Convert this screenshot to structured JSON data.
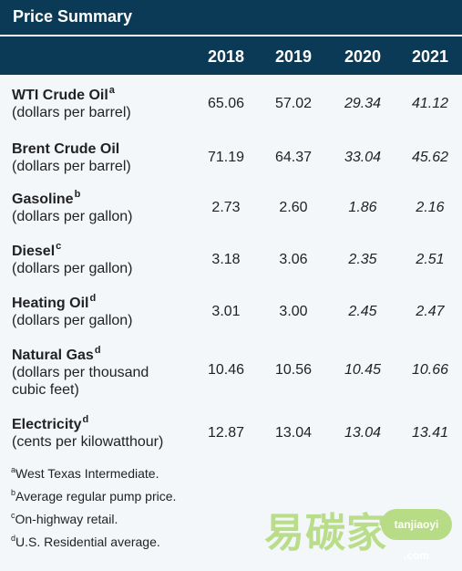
{
  "title": "Price Summary",
  "years": [
    "2018",
    "2019",
    "2020",
    "2021"
  ],
  "rows": [
    {
      "name": "WTI Crude Oil",
      "sup": "a",
      "unit_lines": [
        "(dollars per barrel)"
      ],
      "values": [
        "65.06",
        "57.02",
        "29.34",
        "41.12"
      ]
    },
    {
      "name": "Brent Crude Oil",
      "sup": "",
      "unit_lines": [
        "(dollars per barrel)"
      ],
      "values": [
        "71.19",
        "64.37",
        "33.04",
        "45.62"
      ]
    },
    {
      "name": "Gasoline",
      "sup": "b",
      "unit_lines": [
        "(dollars per gallon)"
      ],
      "values": [
        "2.73",
        "2.60",
        "1.86",
        "2.16"
      ]
    },
    {
      "name": "Diesel",
      "sup": "c",
      "unit_lines": [
        "(dollars per gallon)"
      ],
      "values": [
        "3.18",
        "3.06",
        "2.35",
        "2.51"
      ]
    },
    {
      "name": "Heating Oil",
      "sup": "d",
      "unit_lines": [
        "(dollars per gallon)"
      ],
      "values": [
        "3.01",
        "3.00",
        "2.45",
        "2.47"
      ]
    },
    {
      "name": "Natural Gas",
      "sup": "d",
      "unit_lines": [
        "(dollars per thousand",
        "cubic feet)"
      ],
      "values": [
        "10.46",
        "10.56",
        "10.45",
        "10.66"
      ]
    },
    {
      "name": "Electricity",
      "sup": "d",
      "unit_lines": [
        "(cents per kilowatthour)"
      ],
      "values": [
        "12.87",
        "13.04",
        "13.04",
        "13.41"
      ]
    }
  ],
  "footnotes": [
    {
      "mark": "a",
      "text": "West Texas Intermediate."
    },
    {
      "mark": "b",
      "text": "Average regular pump price."
    },
    {
      "mark": "c",
      "text": "On-highway retail."
    },
    {
      "mark": "d",
      "text": "U.S. Residential average."
    }
  ],
  "watermark": {
    "text": "易碳家",
    "badge": "tanjiaoyi .com",
    "color": "#b7dc85"
  }
}
